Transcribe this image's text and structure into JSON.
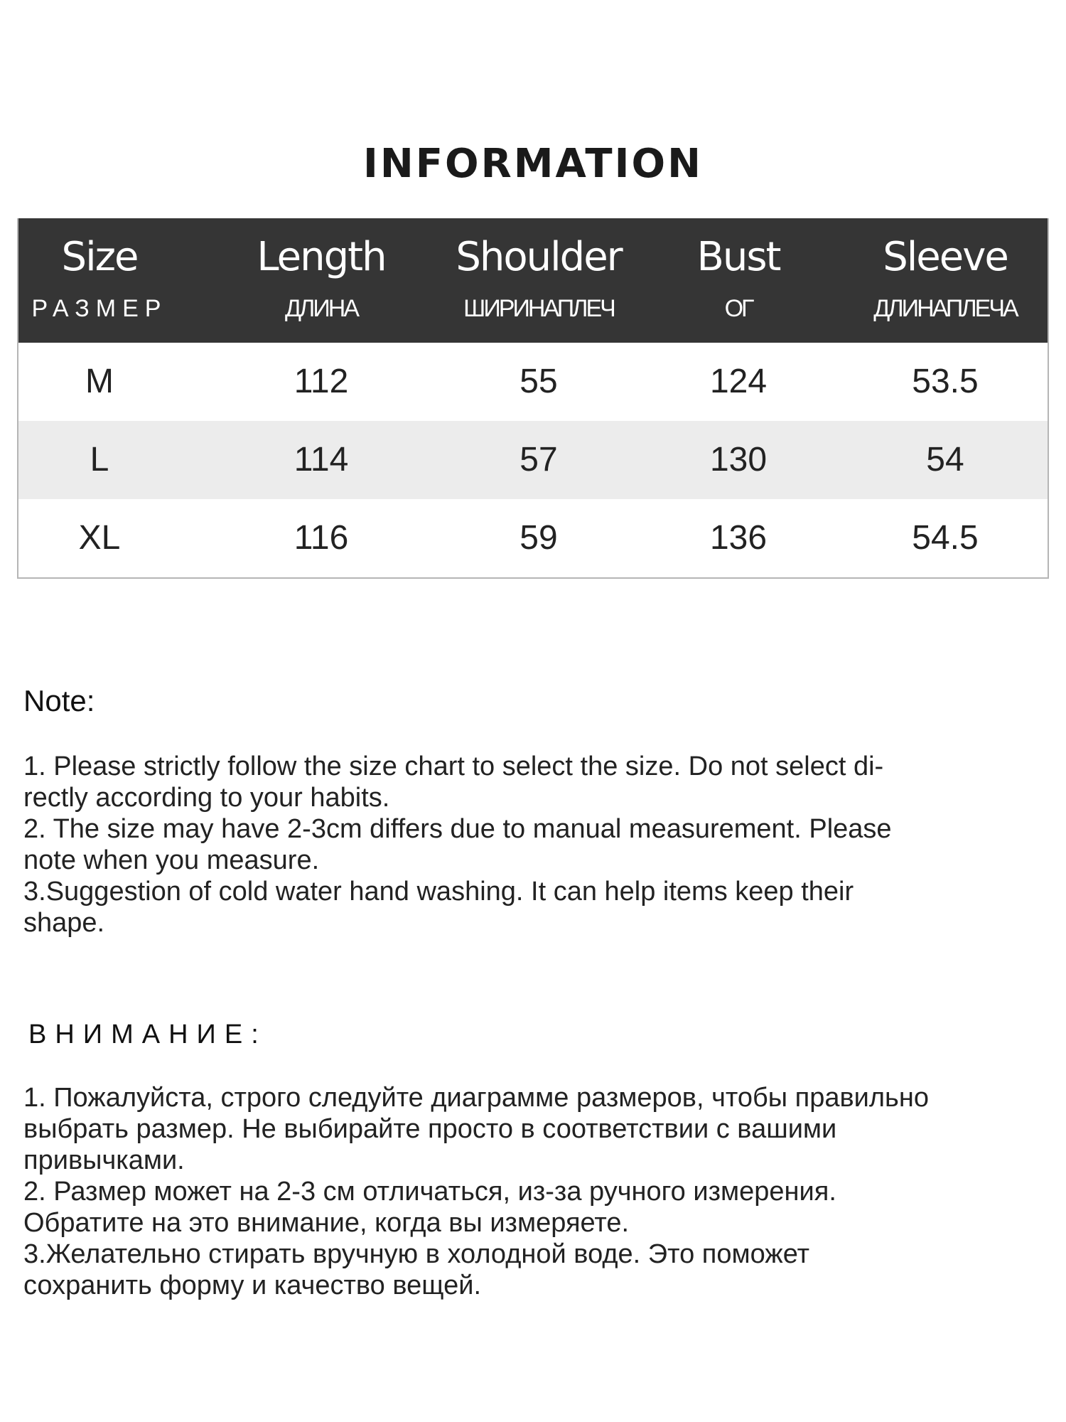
{
  "title": "INFORMATION",
  "table": {
    "columns": [
      {
        "en": "Size",
        "ru": "РАЗМЕР"
      },
      {
        "en": "Length",
        "ru": "ДЛИНА"
      },
      {
        "en": "Shoulder",
        "ru": "ШИРИНАПЛЕЧ"
      },
      {
        "en": "Bust",
        "ru": "ОГ"
      },
      {
        "en": "Sleeve",
        "ru": "ДЛИНАПЛЕЧА"
      }
    ],
    "rows": [
      [
        "M",
        "112",
        "55",
        "124",
        "53.5"
      ],
      [
        "L",
        "114",
        "57",
        "130",
        "54"
      ],
      [
        "XL",
        "116",
        "59",
        "136",
        "54.5"
      ]
    ]
  },
  "note": {
    "heading": "Note:",
    "lines": [
      "1. Please strictly follow the size chart  to select the size. Do not select di-",
      "rectly according to your habits.",
      "2. The size may have 2-3cm differs due to manual measurement. Please",
      "note when you measure.",
      "3.Suggestion of cold water hand washing. It can help items keep their",
      "shape."
    ]
  },
  "note_ru": {
    "heading": "ВНИМАНИЕ:",
    "lines": [
      "1. Пожалуйста, строго следуйте диаграмме размеров, чтобы правильно",
      "выбрать размер. Не выбирайте просто в соответствии с вашими",
      "привычками.",
      "2. Размер может на 2-3 см отличаться, из-за ручного измерения.",
      "Обратите на это внимание, когда вы измеряете.",
      "3.Желательно стирать вручную в холодной воде. Это поможет",
      "сохранить форму и качество вещей."
    ]
  },
  "colors": {
    "header_bg": "#353535",
    "alt_row_bg": "#ececec"
  }
}
